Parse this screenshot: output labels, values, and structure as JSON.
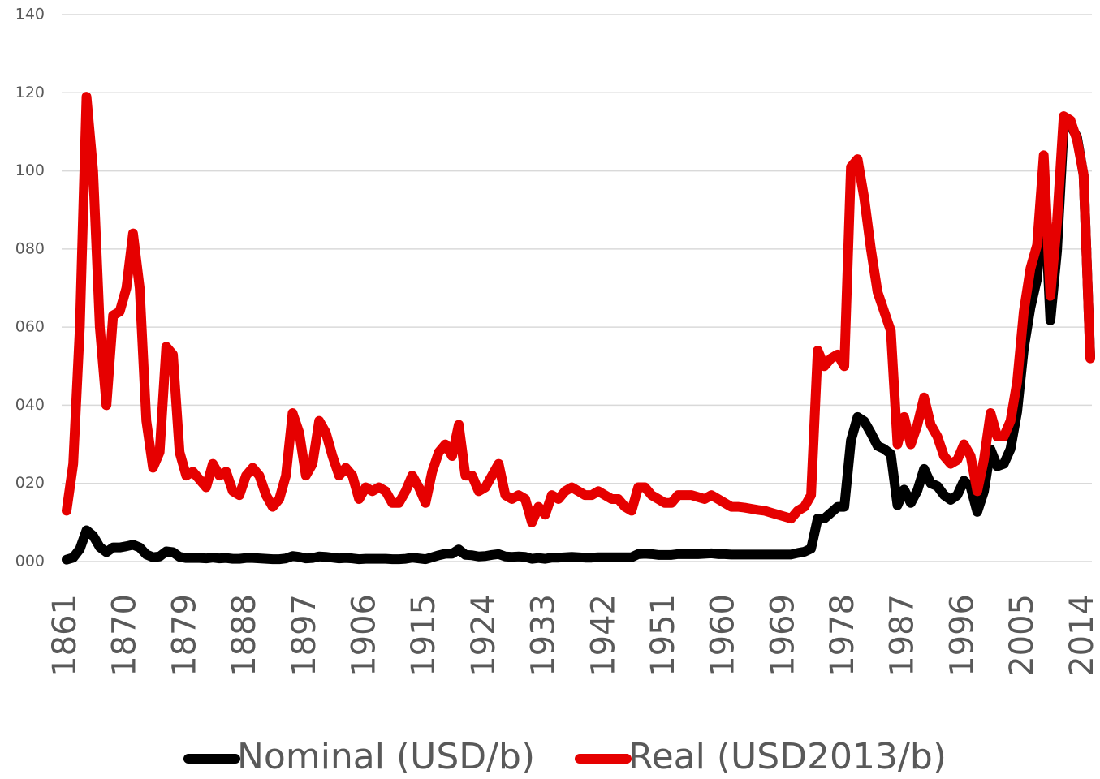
{
  "chart_data": {
    "type": "line",
    "x": [
      1861,
      1862,
      1863,
      1864,
      1865,
      1866,
      1867,
      1868,
      1869,
      1870,
      1871,
      1872,
      1873,
      1874,
      1875,
      1876,
      1877,
      1878,
      1879,
      1880,
      1881,
      1882,
      1883,
      1884,
      1885,
      1886,
      1887,
      1888,
      1889,
      1890,
      1891,
      1892,
      1893,
      1894,
      1895,
      1896,
      1897,
      1898,
      1899,
      1900,
      1901,
      1902,
      1903,
      1904,
      1905,
      1906,
      1907,
      1908,
      1909,
      1910,
      1911,
      1912,
      1913,
      1914,
      1915,
      1916,
      1917,
      1918,
      1919,
      1920,
      1921,
      1922,
      1923,
      1924,
      1925,
      1926,
      1927,
      1928,
      1929,
      1930,
      1931,
      1932,
      1933,
      1934,
      1935,
      1936,
      1937,
      1938,
      1939,
      1940,
      1941,
      1942,
      1943,
      1944,
      1945,
      1946,
      1947,
      1948,
      1949,
      1950,
      1951,
      1952,
      1953,
      1954,
      1955,
      1956,
      1957,
      1958,
      1959,
      1960,
      1961,
      1962,
      1963,
      1964,
      1965,
      1966,
      1967,
      1968,
      1969,
      1970,
      1971,
      1972,
      1973,
      1974,
      1975,
      1976,
      1977,
      1978,
      1979,
      1980,
      1981,
      1982,
      1983,
      1984,
      1985,
      1986,
      1987,
      1988,
      1989,
      1990,
      1991,
      1992,
      1993,
      1994,
      1995,
      1996,
      1997,
      1998,
      1999,
      2000,
      2001,
      2002,
      2003,
      2004,
      2005,
      2006,
      2007,
      2008,
      2009,
      2010,
      2011,
      2012,
      2013,
      2014,
      2015
    ],
    "series": [
      {
        "name": "Nominal (USD/b)",
        "color": "#000000",
        "values": [
          0.5,
          1,
          3.2,
          8,
          6.6,
          3.7,
          2.4,
          3.6,
          3.6,
          3.9,
          4.3,
          3.6,
          1.8,
          1.1,
          1.3,
          2.6,
          2.4,
          1.2,
          0.9,
          0.9,
          0.9,
          0.8,
          1,
          0.8,
          0.9,
          0.7,
          0.7,
          0.9,
          0.9,
          0.8,
          0.7,
          0.6,
          0.6,
          0.8,
          1.4,
          1.2,
          0.8,
          0.9,
          1.3,
          1.2,
          1,
          0.8,
          0.9,
          0.8,
          0.6,
          0.7,
          0.7,
          0.7,
          0.7,
          0.6,
          0.6,
          0.7,
          1,
          0.8,
          0.6,
          1.1,
          1.6,
          2,
          2,
          3.1,
          1.7,
          1.6,
          1.3,
          1.4,
          1.7,
          1.9,
          1.3,
          1.2,
          1.3,
          1.2,
          0.7,
          0.9,
          0.7,
          1,
          1,
          1.1,
          1.2,
          1.1,
          1,
          1,
          1.1,
          1.1,
          1.1,
          1.1,
          1.1,
          1.1,
          1.9,
          2,
          1.9,
          1.7,
          1.7,
          1.7,
          1.9,
          1.9,
          1.9,
          1.9,
          2,
          2.1,
          1.9,
          1.9,
          1.8,
          1.8,
          1.8,
          1.8,
          1.8,
          1.8,
          1.8,
          1.8,
          1.8,
          1.8,
          2.2,
          2.5,
          3.3,
          11,
          11,
          12.5,
          14,
          14,
          31,
          37,
          35.9,
          32.9,
          29.6,
          28.8,
          27.5,
          14.4,
          18.4,
          15,
          18.2,
          23.7,
          20,
          19.3,
          17,
          15.8,
          17,
          20.7,
          19.1,
          12.7,
          17.9,
          28.7,
          24.4,
          25,
          28.8,
          38.3,
          54.5,
          65,
          72.4,
          97,
          61.7,
          79.5,
          111,
          111.7,
          108.7,
          98.9,
          52.4
        ]
      },
      {
        "name": "Real (USD2013/b)",
        "color": "#e60000",
        "values": [
          13,
          25,
          60,
          119,
          100,
          60,
          40,
          63,
          64,
          70,
          84,
          70,
          36,
          24,
          28,
          55,
          53,
          28,
          22,
          23,
          21,
          19,
          25,
          22,
          23,
          18,
          17,
          22,
          24,
          22,
          17,
          14,
          16,
          22,
          38,
          33,
          22,
          25,
          36,
          33,
          27,
          22,
          24,
          22,
          16,
          19,
          18,
          19,
          18,
          15,
          15,
          18,
          22,
          19,
          15,
          23,
          28,
          30,
          27,
          35,
          22,
          22,
          18,
          19,
          22,
          25,
          17,
          16,
          17,
          16,
          10,
          14,
          12,
          17,
          16,
          18,
          19,
          18,
          17,
          17,
          18,
          17,
          16,
          16,
          14,
          13,
          19,
          19,
          17,
          16,
          15,
          15,
          17,
          17,
          17,
          16.5,
          16,
          17,
          16,
          15,
          14,
          14,
          13.8,
          13.5,
          13.2,
          13,
          12.5,
          12,
          11.5,
          11,
          13,
          14,
          17,
          54,
          50,
          52,
          53,
          50,
          101,
          103,
          93,
          80,
          69,
          64,
          59,
          30,
          37,
          30,
          35,
          42,
          35,
          32,
          27,
          25,
          26,
          30,
          27,
          18,
          26,
          38,
          32,
          32,
          36,
          46,
          64,
          75,
          81,
          104,
          68,
          87,
          114,
          113,
          108,
          99,
          52
        ]
      }
    ],
    "xlim": [
      1861,
      2015
    ],
    "xticks": [
      1861,
      1870,
      1879,
      1888,
      1897,
      1906,
      1915,
      1924,
      1933,
      1942,
      1951,
      1960,
      1969,
      1978,
      1987,
      1996,
      2005,
      2014
    ],
    "ylim": [
      0,
      140
    ],
    "yticks": [
      {
        "value": 0,
        "label": "000"
      },
      {
        "value": 20,
        "label": "020"
      },
      {
        "value": 40,
        "label": "040"
      },
      {
        "value": 60,
        "label": "060"
      },
      {
        "value": 80,
        "label": "080"
      },
      100,
      120,
      140
    ],
    "grid": true,
    "legend": "bottom"
  }
}
